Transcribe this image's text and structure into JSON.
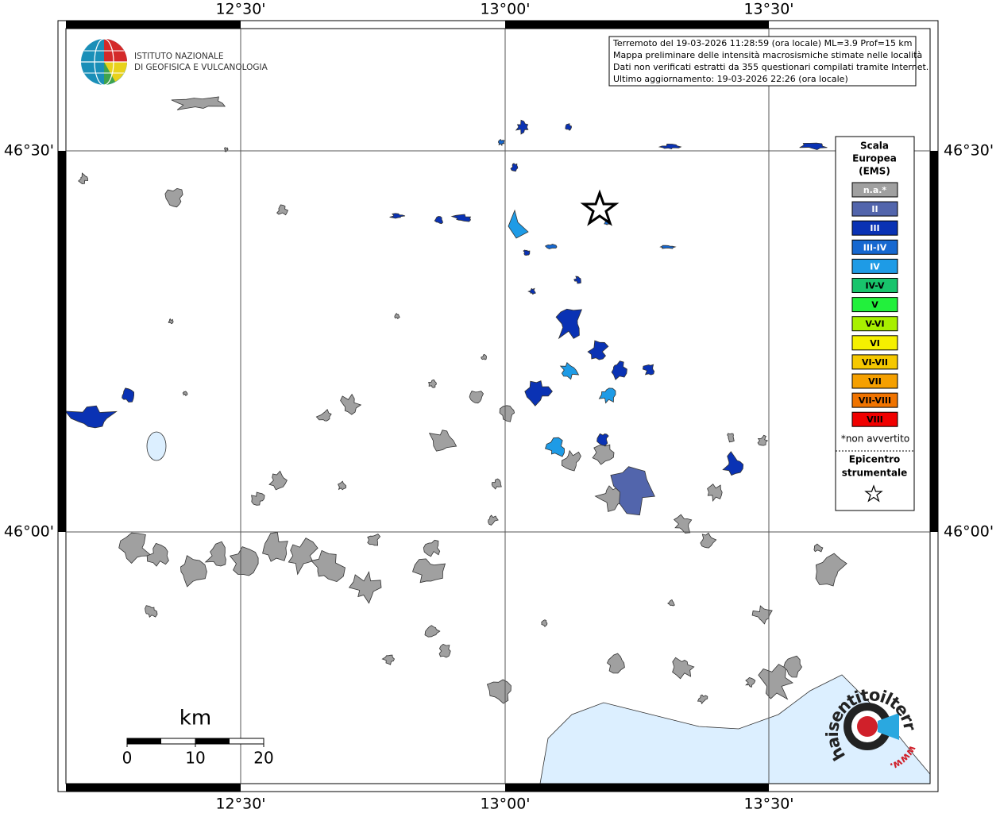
{
  "map": {
    "lon_labels": [
      "12°30'",
      "13°00'",
      "13°30'"
    ],
    "lat_labels": [
      "46°30'",
      "46°00'"
    ]
  },
  "logo": {
    "line1": "ISTITUTO NAZIONALE",
    "line2": "DI GEOFISICA E VULCANOLOGIA"
  },
  "info": {
    "lines": [
      "Terremoto del 19-03-2026 11:28:59 (ora locale) ML=3.9 Prof=15 km",
      "Mappa preliminare delle intensità macrosismiche stimate nelle località",
      "Dati non verificati estratti da 355 questionari compilati tramite Internet.",
      "Ultimo aggiornamento: 19-03-2026 22:26 (ora locale)"
    ]
  },
  "legend": {
    "title": [
      "Scala",
      "Europea",
      "(EMS)"
    ],
    "items": [
      {
        "label": "n.a.*",
        "color": "#a0a0a0"
      },
      {
        "label": "II",
        "color": "#5265ac"
      },
      {
        "label": "III",
        "color": "#0a32b4"
      },
      {
        "label": "III-IV",
        "color": "#1668d0"
      },
      {
        "label": "IV",
        "color": "#1e9be6"
      },
      {
        "label": "IV-V",
        "color": "#18c46c"
      },
      {
        "label": "V",
        "color": "#22f03c"
      },
      {
        "label": "V-VI",
        "color": "#a8f000"
      },
      {
        "label": "VI",
        "color": "#f5f000"
      },
      {
        "label": "VI-VII",
        "color": "#f5c800"
      },
      {
        "label": "VII",
        "color": "#f5a000"
      },
      {
        "label": "VII-VIII",
        "color": "#f07400"
      },
      {
        "label": "VIII",
        "color": "#f00000"
      }
    ],
    "note": "*non avvertito",
    "epicenter": [
      "Epicentro",
      "strumentale"
    ]
  },
  "scalebar": {
    "unit": "km",
    "labels": [
      "0",
      "10",
      "20"
    ]
  },
  "watermark": {
    "main": "haisentitoilterremoto.it",
    "prefix": "www."
  }
}
